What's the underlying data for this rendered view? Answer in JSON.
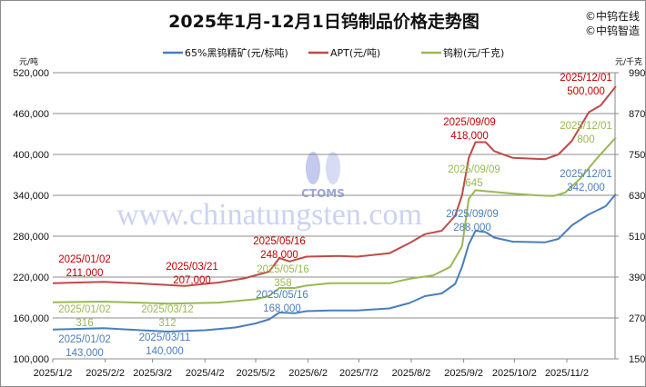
{
  "brand": [
    "©中钨在线",
    "©中钨智造"
  ],
  "watermark": {
    "logo_text": "CTOMS",
    "url": "www.chinatungsten.com"
  },
  "chart_data": {
    "type": "line",
    "title": "2025年1月-12月1日钨制品价格走势图",
    "ylabel_left": "元/吨",
    "ylabel_right": "元/千克",
    "ylim_left": [
      100000,
      520000
    ],
    "yticks_left": [
      "100,000",
      "160,000",
      "220,000",
      "280,000",
      "340,000",
      "400,000",
      "460,000",
      "520,000"
    ],
    "ylim_right": [
      150,
      990
    ],
    "yticks_right": [
      "150",
      "270",
      "390",
      "510",
      "630",
      "750",
      "870",
      "990"
    ],
    "xticks": [
      "2025/1/2",
      "2025/2/2",
      "2025/3/2",
      "2025/4/2",
      "2025/5/2",
      "2025/6/2",
      "2025/7/2",
      "2025/8/2",
      "2025/9/2",
      "2025/10/2",
      "2025/11/2"
    ],
    "grid": true,
    "legend_position": "top",
    "series": [
      {
        "name": "65%黑钨精矿(元/标吨)",
        "axis": "left",
        "color": "#4a7ebb",
        "points": [
          [
            "2025-01-02",
            143000
          ],
          [
            "2025-02-01",
            145000
          ],
          [
            "2025-03-11",
            140000
          ],
          [
            "2025-04-02",
            142000
          ],
          [
            "2025-04-20",
            146000
          ],
          [
            "2025-05-02",
            152000
          ],
          [
            "2025-05-10",
            158000
          ],
          [
            "2025-05-16",
            168000
          ],
          [
            "2025-05-25",
            167000
          ],
          [
            "2025-06-01",
            170000
          ],
          [
            "2025-06-15",
            171000
          ],
          [
            "2025-07-01",
            171000
          ],
          [
            "2025-07-20",
            174000
          ],
          [
            "2025-08-01",
            182000
          ],
          [
            "2025-08-10",
            192000
          ],
          [
            "2025-08-20",
            196000
          ],
          [
            "2025-08-28",
            210000
          ],
          [
            "2025-09-01",
            235000
          ],
          [
            "2025-09-05",
            268000
          ],
          [
            "2025-09-09",
            288000
          ],
          [
            "2025-09-15",
            286000
          ],
          [
            "2025-09-20",
            278000
          ],
          [
            "2025-10-01",
            272000
          ],
          [
            "2025-10-20",
            271000
          ],
          [
            "2025-10-28",
            276000
          ],
          [
            "2025-11-05",
            296000
          ],
          [
            "2025-11-15",
            312000
          ],
          [
            "2025-11-25",
            324000
          ],
          [
            "2025-12-01",
            342000
          ]
        ]
      },
      {
        "name": "APT(元/吨)",
        "axis": "left",
        "color": "#be4b48",
        "points": [
          [
            "2025-01-02",
            211000
          ],
          [
            "2025-02-01",
            213000
          ],
          [
            "2025-02-20",
            211000
          ],
          [
            "2025-03-21",
            207000
          ],
          [
            "2025-04-10",
            212000
          ],
          [
            "2025-04-25",
            218000
          ],
          [
            "2025-05-10",
            228000
          ],
          [
            "2025-05-16",
            248000
          ],
          [
            "2025-05-22",
            243000
          ],
          [
            "2025-06-01",
            250000
          ],
          [
            "2025-06-20",
            251000
          ],
          [
            "2025-07-01",
            250000
          ],
          [
            "2025-07-20",
            255000
          ],
          [
            "2025-08-01",
            270000
          ],
          [
            "2025-08-10",
            283000
          ],
          [
            "2025-08-20",
            288000
          ],
          [
            "2025-08-28",
            310000
          ],
          [
            "2025-09-01",
            340000
          ],
          [
            "2025-09-05",
            395000
          ],
          [
            "2025-09-09",
            418000
          ],
          [
            "2025-09-15",
            418000
          ],
          [
            "2025-09-20",
            405000
          ],
          [
            "2025-10-01",
            395000
          ],
          [
            "2025-10-20",
            393000
          ],
          [
            "2025-10-28",
            400000
          ],
          [
            "2025-11-05",
            420000
          ],
          [
            "2025-11-15",
            462000
          ],
          [
            "2025-11-22",
            472000
          ],
          [
            "2025-12-01",
            500000
          ]
        ]
      },
      {
        "name": "钨粉(元/千克)",
        "axis": "right",
        "color": "#98b954",
        "points": [
          [
            "2025-01-02",
            316
          ],
          [
            "2025-02-01",
            318
          ],
          [
            "2025-03-12",
            312
          ],
          [
            "2025-04-10",
            315
          ],
          [
            "2025-05-02",
            325
          ],
          [
            "2025-05-10",
            335
          ],
          [
            "2025-05-16",
            358
          ],
          [
            "2025-05-25",
            358
          ],
          [
            "2025-06-01",
            365
          ],
          [
            "2025-06-15",
            372
          ],
          [
            "2025-07-20",
            372
          ],
          [
            "2025-08-01",
            385
          ],
          [
            "2025-08-15",
            395
          ],
          [
            "2025-08-25",
            420
          ],
          [
            "2025-09-01",
            480
          ],
          [
            "2025-09-05",
            620
          ],
          [
            "2025-09-09",
            645
          ],
          [
            "2025-09-20",
            640
          ],
          [
            "2025-10-01",
            635
          ],
          [
            "2025-10-15",
            630
          ],
          [
            "2025-10-25",
            628
          ],
          [
            "2025-11-01",
            638
          ],
          [
            "2025-11-10",
            680
          ],
          [
            "2025-11-20",
            740
          ],
          [
            "2025-12-01",
            800
          ]
        ]
      }
    ],
    "annotations": [
      {
        "series": 1,
        "date": "2025/01/02",
        "value": "211,000"
      },
      {
        "series": 1,
        "date": "2025/03/21",
        "value": "207,000"
      },
      {
        "series": 1,
        "date": "2025/05/16",
        "value": "248,000"
      },
      {
        "series": 1,
        "date": "2025/09/09",
        "value": "418,000"
      },
      {
        "series": 1,
        "date": "2025/12/01",
        "value": "500,000"
      },
      {
        "series": 2,
        "date": "2025/01/02",
        "value": "316"
      },
      {
        "series": 2,
        "date": "2025/03/12",
        "value": "312"
      },
      {
        "series": 2,
        "date": "2025/05/16",
        "value": "358"
      },
      {
        "series": 2,
        "date": "2025/09/09",
        "value": "645"
      },
      {
        "series": 2,
        "date": "2025/12/01",
        "value": "800"
      },
      {
        "series": 0,
        "date": "2025/01/02",
        "value": "143,000"
      },
      {
        "series": 0,
        "date": "2025/03/11",
        "value": "140,000"
      },
      {
        "series": 0,
        "date": "2025/05/16",
        "value": "168,000"
      },
      {
        "series": 0,
        "date": "2025/09/09",
        "value": "288,000"
      },
      {
        "series": 0,
        "date": "2025/12/01",
        "value": "342,000"
      }
    ]
  }
}
